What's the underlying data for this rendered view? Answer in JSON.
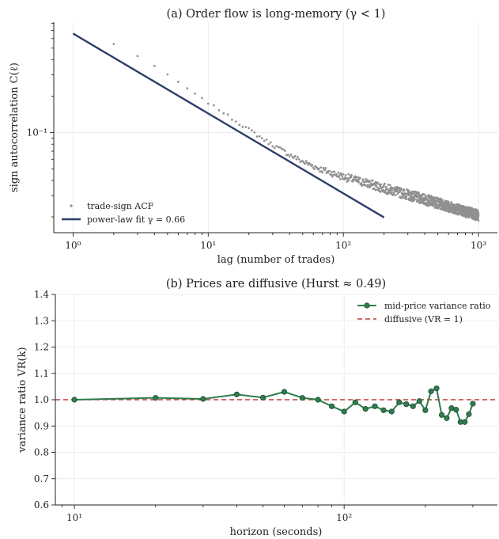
{
  "chart_data": [
    {
      "type": "scatter",
      "title": "(a) Order flow is long-memory (γ < 1)",
      "xlabel": "lag (number of trades)",
      "ylabel": "sign autocorrelation C(ℓ)",
      "x_scale": "log",
      "y_scale": "log",
      "xlim": [
        0.72,
        1380
      ],
      "ylim": [
        0.0148,
        0.82
      ],
      "x_ticks": [
        1,
        10,
        100,
        1000
      ],
      "x_tick_labels": [
        "10⁰",
        "10¹",
        "10²",
        "10³"
      ],
      "y_ticks": [
        0.1
      ],
      "y_tick_labels": [
        "10⁻¹"
      ],
      "grid": true,
      "legend_position": "lower-left",
      "series": [
        {
          "name": "trade-sign ACF",
          "kind": "scatter",
          "color": "#909090",
          "anchors": [
            [
              1,
              0.66
            ],
            [
              2,
              0.54
            ],
            [
              3,
              0.43
            ],
            [
              4,
              0.356
            ],
            [
              5,
              0.3
            ],
            [
              6,
              0.262
            ],
            [
              7,
              0.232
            ],
            [
              8,
              0.208
            ],
            [
              10,
              0.176
            ],
            [
              13,
              0.146
            ],
            [
              16,
              0.124
            ],
            [
              20,
              0.106
            ],
            [
              25,
              0.0895
            ],
            [
              30,
              0.079
            ],
            [
              40,
              0.0655
            ],
            [
              50,
              0.0575
            ],
            [
              70,
              0.049
            ],
            [
              100,
              0.043
            ],
            [
              150,
              0.038
            ],
            [
              200,
              0.0345
            ],
            [
              300,
              0.0305
            ],
            [
              500,
              0.026
            ],
            [
              700,
              0.0232
            ],
            [
              1000,
              0.0205
            ]
          ],
          "noise_amplitude": 0.045
        },
        {
          "name": "power-law fit γ = 0.66",
          "kind": "line",
          "color": "#2d3e6b",
          "x": [
            1,
            200
          ],
          "y": [
            0.66,
            0.0198
          ]
        }
      ]
    },
    {
      "type": "line",
      "title": "(b) Prices are diffusive (Hurst ≈ 0.49)",
      "xlabel": "horizon (seconds)",
      "ylabel": "variance ratio VR(k)",
      "x_scale": "log",
      "xlim": [
        8.5,
        370
      ],
      "ylim": [
        0.6,
        1.4
      ],
      "x_ticks": [
        10,
        100
      ],
      "x_tick_labels": [
        "10¹",
        "10²"
      ],
      "y_ticks": [
        0.6,
        0.7,
        0.8,
        0.9,
        1.0,
        1.1,
        1.2,
        1.3,
        1.4
      ],
      "y_tick_labels": [
        "0.6",
        "0.7",
        "0.8",
        "0.9",
        "1.0",
        "1.1",
        "1.2",
        "1.3",
        "1.4"
      ],
      "grid": true,
      "legend_position": "top-right",
      "series": [
        {
          "name": "mid-price variance ratio",
          "kind": "line-markers",
          "color": "#2e7d4f",
          "x": [
            10,
            20,
            30,
            40,
            50,
            60,
            70,
            80,
            90,
            100,
            110,
            120,
            130,
            140,
            150,
            160,
            170,
            180,
            190,
            200,
            210,
            220,
            230,
            240,
            250,
            260,
            270,
            280,
            290,
            300
          ],
          "y": [
            1.0,
            1.007,
            1.003,
            1.02,
            1.008,
            1.03,
            1.007,
            1.0,
            0.975,
            0.955,
            0.99,
            0.965,
            0.975,
            0.96,
            0.955,
            0.99,
            0.983,
            0.975,
            0.995,
            0.96,
            1.032,
            1.043,
            0.942,
            0.93,
            0.968,
            0.962,
            0.915,
            0.915,
            0.945,
            0.985
          ]
        },
        {
          "name": "diffusive (VR = 1)",
          "kind": "hline",
          "color": "#c0393b",
          "y": 1.0
        }
      ]
    }
  ]
}
